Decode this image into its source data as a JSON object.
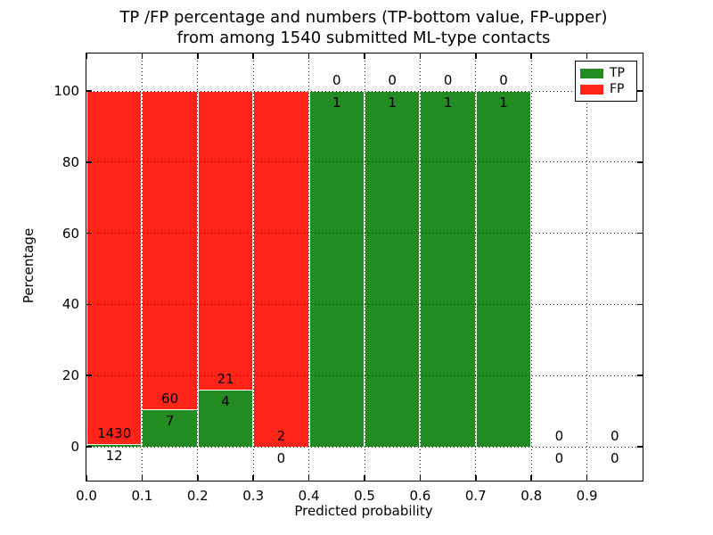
{
  "figure": {
    "title_line1": "TP /FP percentage and numbers (TP-bottom value, FP-upper)",
    "title_line2": "from among 1540 submitted ML-type contacts",
    "background": "#ffffff"
  },
  "chart_data": {
    "type": "bar",
    "stacked": true,
    "title": "TP /FP percentage and numbers (TP-bottom value, FP-upper)\nfrom among 1540 submitted ML-type contacts",
    "xlabel": "Predicted probability",
    "ylabel": "Percentage",
    "total_contacts": 1540,
    "units": "percent of contacts in each probability bin; numeric labels are raw counts (TP below boundary, FP above)",
    "bins": [
      {
        "range": [
          0.0,
          0.1
        ],
        "tp_count": 12,
        "fp_count": 1430,
        "tp_percent": 0.83,
        "fp_percent": 99.17
      },
      {
        "range": [
          0.1,
          0.2
        ],
        "tp_count": 7,
        "fp_count": 60,
        "tp_percent": 10.45,
        "fp_percent": 89.55
      },
      {
        "range": [
          0.2,
          0.3
        ],
        "tp_count": 4,
        "fp_count": 21,
        "tp_percent": 16.0,
        "fp_percent": 84.0
      },
      {
        "range": [
          0.3,
          0.4
        ],
        "tp_count": 0,
        "fp_count": 2,
        "tp_percent": 0.0,
        "fp_percent": 100.0
      },
      {
        "range": [
          0.4,
          0.5
        ],
        "tp_count": 1,
        "fp_count": 0,
        "tp_percent": 100.0,
        "fp_percent": 0.0
      },
      {
        "range": [
          0.5,
          0.6
        ],
        "tp_count": 1,
        "fp_count": 0,
        "tp_percent": 100.0,
        "fp_percent": 0.0
      },
      {
        "range": [
          0.6,
          0.7
        ],
        "tp_count": 1,
        "fp_count": 0,
        "tp_percent": 100.0,
        "fp_percent": 0.0
      },
      {
        "range": [
          0.7,
          0.8
        ],
        "tp_count": 1,
        "fp_count": 0,
        "tp_percent": 100.0,
        "fp_percent": 0.0
      },
      {
        "range": [
          0.8,
          0.9
        ],
        "tp_count": 0,
        "fp_count": 0,
        "tp_percent": null,
        "fp_percent": null
      },
      {
        "range": [
          0.9,
          1.0
        ],
        "tp_count": 0,
        "fp_count": 0,
        "tp_percent": null,
        "fp_percent": null
      }
    ],
    "series": [
      {
        "name": "TP",
        "color": "#228b22",
        "counts": [
          12,
          7,
          4,
          0,
          1,
          1,
          1,
          1,
          0,
          0
        ]
      },
      {
        "name": "FP",
        "color": "#ff2318",
        "counts": [
          1430,
          60,
          21,
          2,
          0,
          0,
          0,
          0,
          0,
          0
        ]
      }
    ],
    "xticks": [
      "0.0",
      "0.1",
      "0.2",
      "0.3",
      "0.4",
      "0.5",
      "0.6",
      "0.7",
      "0.8",
      "0.9"
    ],
    "yticks": [
      "0",
      "20",
      "40",
      "60",
      "80",
      "100"
    ],
    "xlim": [
      0.0,
      1.0
    ],
    "ylim": [
      -9.5,
      110.5
    ],
    "grid": true,
    "grid_style": "dotted",
    "bar_edge_color": "#ffffff",
    "legend_position": "upper right",
    "legend": [
      {
        "label": "TP",
        "color": "#228b22"
      },
      {
        "label": "FP",
        "color": "#ff2318"
      }
    ]
  }
}
